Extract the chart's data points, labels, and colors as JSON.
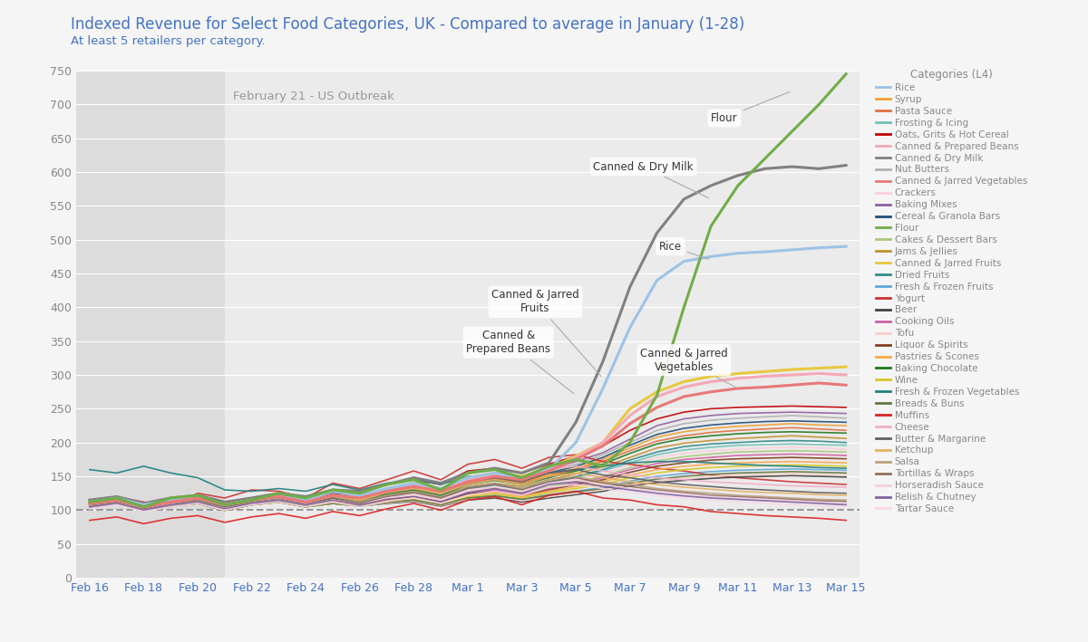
{
  "title": "Indexed Revenue for Select Food Categories, UK - Compared to average in January (1-28)",
  "subtitle": "At least 5 retailers per category.",
  "title_color": "#4472c4",
  "subtitle_color": "#4472c4",
  "background_color": "#f5f5f5",
  "outbreak_label": "February 21 - US Outbreak",
  "dashed_line_y": 100,
  "ylim": [
    0,
    750
  ],
  "yticks": [
    0,
    50,
    100,
    150,
    200,
    250,
    300,
    350,
    400,
    450,
    500,
    550,
    600,
    650,
    700,
    750
  ],
  "date_labels": [
    "Feb 16",
    "Feb 18",
    "Feb 20",
    "Feb 22",
    "Feb 24",
    "Feb 26",
    "Feb 28",
    "Mar 1",
    "Mar 3",
    "Mar 5",
    "Mar 7",
    "Mar 9",
    "Mar 11",
    "Mar 13",
    "Mar 15"
  ],
  "n_dates": 29,
  "outbreak_idx": 5,
  "xtick_positions": [
    0,
    2,
    4,
    6,
    8,
    10,
    12,
    14,
    16,
    18,
    20,
    22,
    24,
    26,
    28
  ],
  "legend_title": "Categories (L4)",
  "categories": [
    "Rice",
    "Syrup",
    "Pasta Sauce",
    "Frosting & Icing",
    "Oats, Grits & Hot Cereal",
    "Canned & Prepared Beans",
    "Canned & Dry Milk",
    "Nut Butters",
    "Canned & Jarred Vegetables",
    "Crackers",
    "Baking Mixes",
    "Cereal & Granola Bars",
    "Flour",
    "Cakes & Dessert Bars",
    "Jams & Jellies",
    "Canned & Jarred Fruits",
    "Dried Fruits",
    "Fresh & Frozen Fruits",
    "Yogurt",
    "Beer",
    "Cooking Oils",
    "Tofu",
    "Liquor & Spirits",
    "Pastries & Scones",
    "Baking Chocolate",
    "Wine",
    "Fresh & Frozen Vegetables",
    "Breads & Buns",
    "Muffins",
    "Cheese",
    "Butter & Margarine",
    "Ketchup",
    "Salsa",
    "Tortillas & Wraps",
    "Horseradish Sauce",
    "Relish & Chutney",
    "Tartar Sauce"
  ],
  "special_colors": {
    "Rice": "#9dc3e6",
    "Syrup": "#f0a030",
    "Pasta Sauce": "#e07040",
    "Frosting & Icing": "#70c0b8",
    "Oats, Grits & Hot Cereal": "#c00000",
    "Canned & Prepared Beans": "#f4a8b8",
    "Canned & Dry Milk": "#808080",
    "Nut Butters": "#b0b0b0",
    "Canned & Jarred Vegetables": "#e87878",
    "Crackers": "#fcd0d8",
    "Baking Mixes": "#9060a0",
    "Cereal & Granola Bars": "#1f4e79",
    "Flour": "#70ad47",
    "Cakes & Dessert Bars": "#a8c878",
    "Jams & Jellies": "#c09030",
    "Canned & Jarred Fruits": "#e8c840",
    "Dried Fruits": "#2e8b8b",
    "Fresh & Frozen Fruits": "#60a8d8",
    "Yogurt": "#cc3333",
    "Beer": "#404040",
    "Cooking Oils": "#d060a0",
    "Tofu": "#f8d0c8",
    "Liquor & Spirits": "#804020",
    "Pastries & Scones": "#f8a848",
    "Baking Chocolate": "#207820",
    "Wine": "#d8c820",
    "Fresh & Frozen Vegetables": "#208080",
    "Breads & Buns": "#607840",
    "Muffins": "#dd2222",
    "Cheese": "#f0b0c8",
    "Butter & Margarine": "#606060",
    "Ketchup": "#e8b060",
    "Salsa": "#c0a080",
    "Tortillas & Wraps": "#907060",
    "Horseradish Sauce": "#f0d0e0",
    "Relish & Chutney": "#8060a0",
    "Tartar Sauce": "#f8d8e8"
  },
  "series_data": {
    "Flour": [
      112,
      118,
      105,
      118,
      122,
      108,
      115,
      125,
      118,
      130,
      125,
      138,
      145,
      130,
      155,
      160,
      148,
      165,
      175,
      165,
      200,
      270,
      400,
      520,
      580,
      620,
      660,
      700,
      745
    ],
    "Canned & Dry Milk": [
      115,
      120,
      110,
      118,
      122,
      112,
      118,
      125,
      120,
      130,
      128,
      138,
      148,
      140,
      155,
      162,
      155,
      170,
      230,
      320,
      430,
      510,
      560,
      580,
      595,
      605,
      608,
      605,
      610
    ],
    "Rice": [
      112,
      118,
      108,
      115,
      120,
      108,
      115,
      120,
      115,
      128,
      122,
      132,
      140,
      132,
      148,
      155,
      148,
      160,
      200,
      280,
      370,
      440,
      468,
      475,
      480,
      482,
      485,
      488,
      490
    ],
    "Canned & Jarred Fruits": [
      110,
      115,
      105,
      112,
      118,
      108,
      115,
      120,
      112,
      122,
      118,
      130,
      140,
      132,
      148,
      155,
      150,
      162,
      180,
      200,
      250,
      275,
      290,
      298,
      302,
      305,
      308,
      310,
      312
    ],
    "Canned & Prepared Beans": [
      110,
      115,
      105,
      112,
      118,
      108,
      115,
      120,
      112,
      122,
      118,
      130,
      138,
      130,
      145,
      152,
      148,
      160,
      178,
      200,
      240,
      268,
      282,
      290,
      295,
      298,
      300,
      302,
      300
    ],
    "Canned & Jarred Vegetables": [
      110,
      115,
      105,
      112,
      118,
      108,
      115,
      120,
      112,
      122,
      118,
      128,
      135,
      128,
      142,
      150,
      145,
      158,
      175,
      195,
      228,
      252,
      268,
      275,
      280,
      282,
      285,
      288,
      285
    ],
    "Oats, Grits & Hot Cereal": [
      112,
      115,
      105,
      118,
      120,
      108,
      115,
      122,
      118,
      130,
      125,
      138,
      145,
      138,
      158,
      162,
      155,
      168,
      180,
      195,
      218,
      235,
      245,
      250,
      252,
      253,
      254,
      253,
      252
    ],
    "Baking Mixes": [
      110,
      115,
      105,
      112,
      118,
      108,
      115,
      120,
      112,
      125,
      120,
      132,
      140,
      132,
      148,
      155,
      148,
      160,
      172,
      185,
      205,
      225,
      235,
      240,
      243,
      244,
      245,
      244,
      243
    ],
    "Nut Butters": [
      110,
      115,
      105,
      112,
      118,
      108,
      115,
      120,
      112,
      125,
      118,
      130,
      138,
      130,
      145,
      152,
      148,
      158,
      168,
      182,
      200,
      218,
      228,
      233,
      236,
      238,
      240,
      238,
      236
    ],
    "Cereal & Granola Bars": [
      110,
      115,
      105,
      112,
      118,
      108,
      115,
      120,
      112,
      122,
      118,
      130,
      138,
      130,
      145,
      150,
      145,
      155,
      165,
      178,
      196,
      212,
      221,
      226,
      229,
      231,
      232,
      231,
      230
    ],
    "Syrup": [
      108,
      112,
      102,
      110,
      115,
      105,
      112,
      118,
      110,
      120,
      115,
      128,
      135,
      128,
      142,
      148,
      142,
      152,
      162,
      175,
      192,
      208,
      216,
      221,
      224,
      226,
      228,
      226,
      225
    ],
    "Pasta Sauce": [
      108,
      112,
      102,
      110,
      115,
      105,
      112,
      118,
      110,
      120,
      115,
      126,
      132,
      125,
      140,
      146,
      140,
      150,
      160,
      172,
      188,
      202,
      210,
      215,
      218,
      220,
      222,
      220,
      218
    ],
    "Baking Chocolate": [
      108,
      112,
      102,
      110,
      115,
      105,
      112,
      118,
      110,
      118,
      112,
      124,
      130,
      122,
      138,
      144,
      138,
      148,
      158,
      168,
      184,
      198,
      206,
      210,
      213,
      215,
      216,
      215,
      214
    ],
    "Jams & Jellies": [
      108,
      112,
      102,
      108,
      112,
      102,
      110,
      115,
      108,
      118,
      112,
      122,
      128,
      120,
      135,
      140,
      135,
      145,
      154,
      164,
      178,
      192,
      199,
      203,
      206,
      208,
      210,
      208,
      206
    ],
    "Dried Fruits": [
      108,
      112,
      102,
      108,
      112,
      102,
      110,
      115,
      108,
      118,
      112,
      122,
      128,
      120,
      133,
      138,
      132,
      142,
      150,
      160,
      174,
      186,
      194,
      198,
      200,
      202,
      203,
      202,
      200
    ],
    "Frosting & Icing": [
      108,
      112,
      102,
      108,
      112,
      102,
      110,
      115,
      108,
      118,
      112,
      120,
      126,
      118,
      132,
      136,
      130,
      140,
      148,
      158,
      170,
      182,
      189,
      193,
      196,
      197,
      198,
      197,
      196
    ],
    "Crackers": [
      105,
      110,
      100,
      106,
      110,
      100,
      108,
      112,
      105,
      115,
      110,
      118,
      124,
      116,
      130,
      134,
      128,
      138,
      146,
      154,
      167,
      178,
      184,
      188,
      190,
      192,
      193,
      192,
      190
    ],
    "Cakes & Dessert Bars": [
      105,
      110,
      100,
      106,
      110,
      100,
      108,
      112,
      105,
      112,
      108,
      116,
      122,
      114,
      127,
      132,
      126,
      135,
      142,
      150,
      163,
      173,
      179,
      183,
      186,
      187,
      188,
      187,
      186
    ],
    "Cooking Oils": [
      105,
      110,
      100,
      106,
      110,
      100,
      108,
      112,
      105,
      112,
      108,
      116,
      120,
      112,
      126,
      130,
      124,
      132,
      140,
      148,
      160,
      169,
      175,
      178,
      181,
      182,
      183,
      182,
      181
    ],
    "Liquor & Spirits": [
      105,
      110,
      100,
      106,
      110,
      100,
      108,
      112,
      105,
      112,
      108,
      115,
      120,
      112,
      124,
      128,
      122,
      130,
      138,
      145,
      156,
      165,
      170,
      174,
      176,
      177,
      178,
      177,
      176
    ],
    "Pastries & Scones": [
      105,
      110,
      100,
      106,
      110,
      100,
      108,
      112,
      105,
      112,
      108,
      115,
      118,
      110,
      122,
      126,
      120,
      128,
      135,
      142,
      152,
      160,
      165,
      168,
      170,
      171,
      172,
      171,
      170
    ],
    "Wine": [
      105,
      110,
      100,
      106,
      110,
      100,
      108,
      112,
      105,
      110,
      106,
      112,
      116,
      108,
      120,
      124,
      118,
      126,
      132,
      138,
      148,
      155,
      160,
      163,
      165,
      166,
      167,
      166,
      165
    ],
    "Fresh & Frozen Vegetables": [
      160,
      155,
      165,
      155,
      148,
      130,
      128,
      132,
      128,
      138,
      130,
      140,
      145,
      138,
      150,
      152,
      148,
      155,
      160,
      165,
      170,
      172,
      172,
      170,
      168,
      166,
      165,
      163,
      162
    ],
    "Fresh & Frozen Fruits": [
      105,
      110,
      100,
      106,
      110,
      100,
      108,
      112,
      105,
      110,
      106,
      112,
      116,
      108,
      118,
      122,
      116,
      123,
      128,
      134,
      143,
      150,
      154,
      157,
      159,
      160,
      161,
      160,
      159
    ],
    "Breads & Buns": [
      105,
      110,
      100,
      106,
      110,
      100,
      108,
      112,
      105,
      110,
      106,
      112,
      115,
      108,
      118,
      121,
      116,
      122,
      127,
      132,
      140,
      146,
      150,
      153,
      155,
      156,
      157,
      156,
      155
    ],
    "Tofu": [
      105,
      110,
      100,
      106,
      110,
      100,
      108,
      112,
      105,
      110,
      106,
      111,
      114,
      107,
      116,
      120,
      114,
      120,
      125,
      130,
      138,
      143,
      147,
      150,
      152,
      153,
      154,
      153,
      152
    ],
    "Beer": [
      105,
      110,
      100,
      106,
      110,
      100,
      108,
      112,
      105,
      110,
      106,
      110,
      113,
      106,
      115,
      118,
      112,
      118,
      123,
      128,
      136,
      141,
      144,
      147,
      149,
      150,
      151,
      150,
      149
    ],
    "Yogurt": [
      115,
      120,
      112,
      105,
      125,
      118,
      130,
      128,
      118,
      140,
      132,
      145,
      158,
      145,
      168,
      175,
      162,
      178,
      182,
      172,
      168,
      162,
      158,
      152,
      148,
      145,
      142,
      140,
      138
    ],
    "Muffins": [
      85,
      90,
      80,
      88,
      92,
      82,
      90,
      95,
      88,
      98,
      92,
      102,
      110,
      100,
      115,
      120,
      108,
      122,
      128,
      118,
      115,
      108,
      105,
      98,
      95,
      92,
      90,
      88,
      85
    ],
    "Cheese": [
      115,
      120,
      110,
      118,
      122,
      112,
      118,
      122,
      115,
      128,
      120,
      132,
      140,
      132,
      148,
      155,
      148,
      160,
      165,
      158,
      152,
      148,
      145,
      142,
      140,
      138,
      136,
      135,
      134
    ],
    "Butter & Margarine": [
      112,
      118,
      108,
      115,
      120,
      110,
      115,
      120,
      112,
      125,
      118,
      128,
      135,
      128,
      142,
      148,
      142,
      155,
      160,
      152,
      148,
      142,
      138,
      135,
      132,
      130,
      128,
      126,
      125
    ],
    "Ketchup": [
      110,
      115,
      105,
      112,
      118,
      108,
      115,
      120,
      112,
      122,
      115,
      126,
      132,
      125,
      138,
      145,
      138,
      150,
      155,
      148,
      142,
      138,
      134,
      131,
      128,
      126,
      125,
      123,
      122
    ],
    "Salsa": [
      108,
      112,
      102,
      110,
      115,
      105,
      112,
      118,
      110,
      120,
      112,
      122,
      128,
      120,
      135,
      140,
      132,
      145,
      150,
      142,
      138,
      132,
      128,
      125,
      122,
      120,
      118,
      116,
      115
    ],
    "Tortillas & Wraps": [
      108,
      112,
      102,
      110,
      115,
      105,
      112,
      118,
      110,
      118,
      110,
      120,
      126,
      118,
      132,
      138,
      130,
      142,
      148,
      140,
      135,
      130,
      126,
      122,
      120,
      118,
      116,
      114,
      113
    ],
    "Horseradish Sauce": [
      105,
      110,
      100,
      108,
      112,
      102,
      110,
      115,
      108,
      115,
      108,
      118,
      122,
      115,
      128,
      135,
      128,
      140,
      145,
      138,
      132,
      128,
      124,
      120,
      118,
      116,
      114,
      112,
      110
    ],
    "Relish & Chutney": [
      105,
      110,
      100,
      108,
      112,
      102,
      110,
      115,
      108,
      115,
      108,
      116,
      120,
      112,
      126,
      132,
      125,
      138,
      142,
      135,
      130,
      125,
      121,
      118,
      116,
      114,
      112,
      110,
      108
    ],
    "Tartar Sauce": [
      102,
      108,
      98,
      105,
      110,
      100,
      108,
      112,
      105,
      112,
      105,
      113,
      118,
      110,
      122,
      128,
      122,
      134,
      138,
      132,
      126,
      122,
      118,
      115,
      112,
      110,
      108,
      106,
      105
    ]
  }
}
